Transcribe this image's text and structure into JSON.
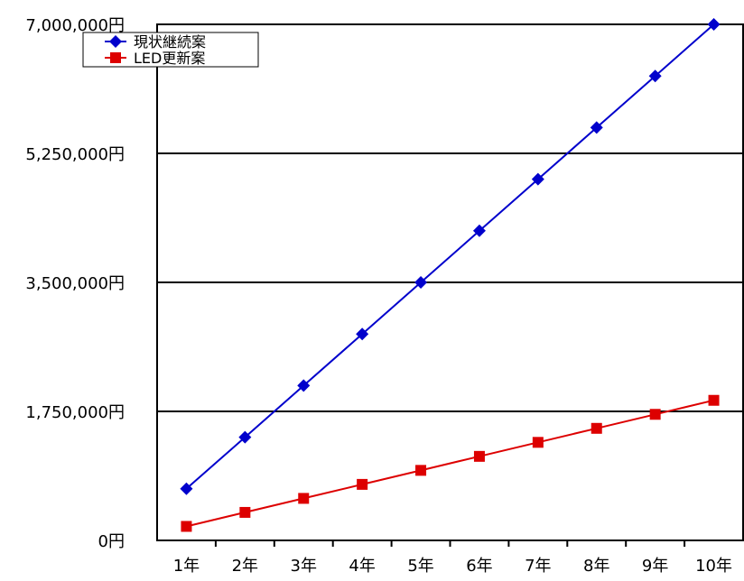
{
  "chart_data": {
    "type": "line",
    "title": "",
    "xlabel": "",
    "ylabel": "",
    "categories": [
      "1年",
      "2年",
      "3年",
      "4年",
      "5年",
      "6年",
      "7年",
      "8年",
      "9年",
      "10年"
    ],
    "y_ticks": [
      "0円",
      "1,750,000円",
      "3,500,000円",
      "5,250,000円",
      "7,000,000円"
    ],
    "y_tick_values": [
      0,
      1750000,
      3500000,
      5250000,
      7000000
    ],
    "ylim": [
      0,
      7000000
    ],
    "grid": true,
    "legend_position": "top-left",
    "series": [
      {
        "name": "現状継続案",
        "color": "#0000cc",
        "marker": "diamond",
        "values": [
          700000,
          1400000,
          2100000,
          2800000,
          3500000,
          4200000,
          4900000,
          5600000,
          6300000,
          7000000
        ]
      },
      {
        "name": "LED更新案",
        "color": "#dd0000",
        "marker": "square",
        "values": [
          190000,
          380000,
          570000,
          760000,
          950000,
          1140000,
          1330000,
          1520000,
          1710000,
          1900000
        ]
      }
    ]
  }
}
